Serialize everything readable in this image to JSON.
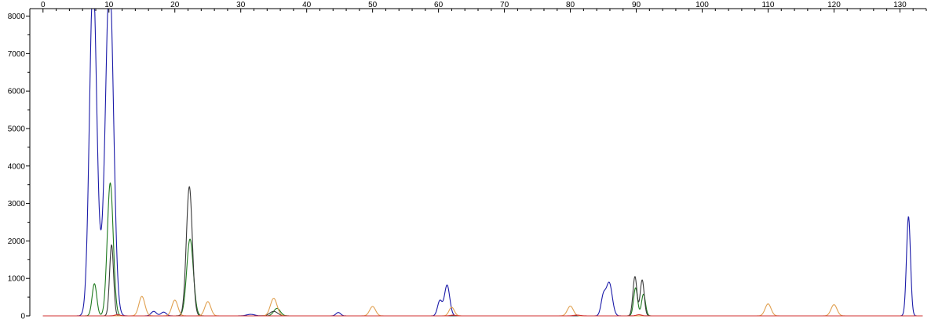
{
  "chart_data": {
    "type": "line",
    "title": "",
    "xlabel": "",
    "ylabel": "",
    "xlim": [
      -2,
      134
    ],
    "ylim": [
      0,
      8200
    ],
    "grid": false,
    "x_ticks": [
      0,
      10,
      20,
      30,
      40,
      50,
      60,
      70,
      80,
      90,
      100,
      110,
      120,
      130
    ],
    "x_minor_step": 2,
    "y_ticks": [
      0,
      1000,
      2000,
      3000,
      4000,
      5000,
      6000,
      7000,
      8000
    ],
    "y_minor_step": 500,
    "series": [
      {
        "color": "#1a1aa8",
        "peaks": [
          {
            "x": 7.6,
            "h": 9000,
            "w": 0.55
          },
          {
            "x": 10.1,
            "h": 9000,
            "w": 0.6
          },
          {
            "x": 9.0,
            "h": 650,
            "w": 0.5
          },
          {
            "x": 16.8,
            "h": 120,
            "w": 0.4
          },
          {
            "x": 18.3,
            "h": 100,
            "w": 0.4
          },
          {
            "x": 31.5,
            "h": 40,
            "w": 0.6
          },
          {
            "x": 44.8,
            "h": 90,
            "w": 0.35
          },
          {
            "x": 60.2,
            "h": 400,
            "w": 0.35
          },
          {
            "x": 61.3,
            "h": 820,
            "w": 0.4
          },
          {
            "x": 85.0,
            "h": 500,
            "w": 0.35
          },
          {
            "x": 85.9,
            "h": 880,
            "w": 0.45
          },
          {
            "x": 131.3,
            "h": 2650,
            "w": 0.3
          }
        ]
      },
      {
        "color": "#1f7a1f",
        "peaks": [
          {
            "x": 7.8,
            "h": 860,
            "w": 0.35
          },
          {
            "x": 10.2,
            "h": 3550,
            "w": 0.45
          },
          {
            "x": 22.3,
            "h": 2050,
            "w": 0.5
          },
          {
            "x": 35.5,
            "h": 200,
            "w": 0.5
          },
          {
            "x": 89.9,
            "h": 750,
            "w": 0.3
          },
          {
            "x": 91.1,
            "h": 580,
            "w": 0.3
          }
        ]
      },
      {
        "color": "#3a3a3a",
        "peaks": [
          {
            "x": 10.4,
            "h": 1900,
            "w": 0.3
          },
          {
            "x": 22.2,
            "h": 3450,
            "w": 0.45
          },
          {
            "x": 35.0,
            "h": 120,
            "w": 0.6
          },
          {
            "x": 89.8,
            "h": 1050,
            "w": 0.3
          },
          {
            "x": 90.9,
            "h": 960,
            "w": 0.3
          }
        ]
      },
      {
        "color": "#e0a050",
        "peaks": [
          {
            "x": 15.0,
            "h": 520,
            "w": 0.45
          },
          {
            "x": 20.0,
            "h": 420,
            "w": 0.45
          },
          {
            "x": 25.0,
            "h": 380,
            "w": 0.45
          },
          {
            "x": 35.0,
            "h": 470,
            "w": 0.5
          },
          {
            "x": 50.0,
            "h": 250,
            "w": 0.45
          },
          {
            "x": 62.0,
            "h": 230,
            "w": 0.4
          },
          {
            "x": 80.0,
            "h": 260,
            "w": 0.45
          },
          {
            "x": 110.0,
            "h": 320,
            "w": 0.45
          },
          {
            "x": 120.0,
            "h": 300,
            "w": 0.45
          }
        ]
      },
      {
        "color": "#d03030",
        "peaks": [
          {
            "x": 11.3,
            "h": 30,
            "w": 0.4
          },
          {
            "x": 62.2,
            "h": 20,
            "w": 0.4
          },
          {
            "x": 81.0,
            "h": 20,
            "w": 0.5
          },
          {
            "x": 90.4,
            "h": 30,
            "w": 0.4
          }
        ]
      }
    ]
  }
}
